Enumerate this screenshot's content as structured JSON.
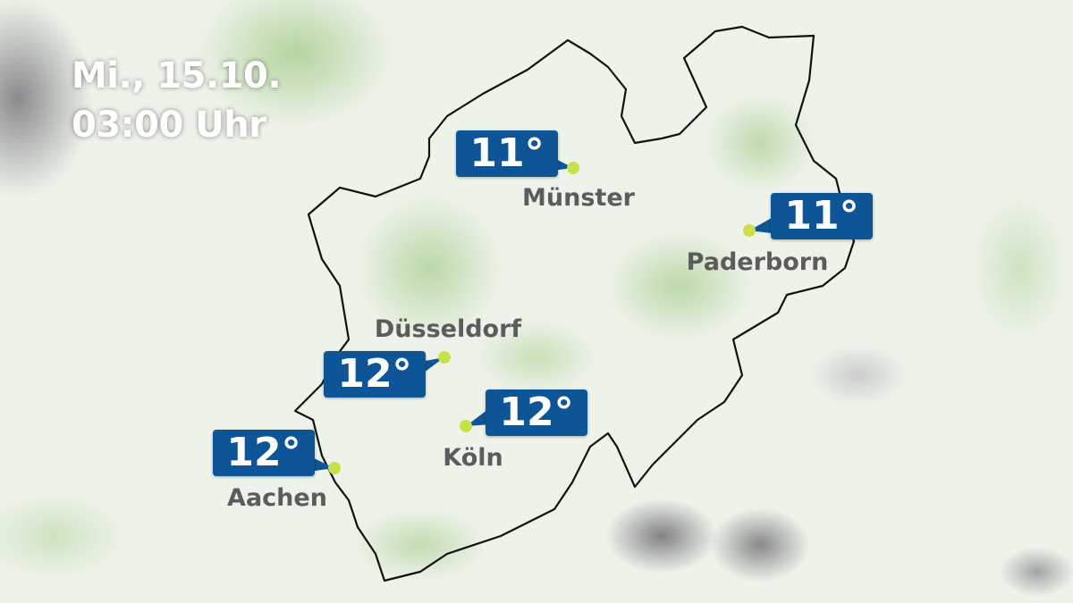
{
  "header": {
    "date": "Mi., 15.10.",
    "time": "03:00 Uhr"
  },
  "colors": {
    "label_box": "#0d5596",
    "city_dot": "#c8e04a",
    "city_text": "#5c5c5c",
    "border": "#111111"
  },
  "cities": [
    {
      "name": "Münster",
      "temp": "11°"
    },
    {
      "name": "Paderborn",
      "temp": "11°"
    },
    {
      "name": "Düsseldorf",
      "temp": "12°"
    },
    {
      "name": "Köln",
      "temp": "12°"
    },
    {
      "name": "Aachen",
      "temp": "12°"
    }
  ]
}
